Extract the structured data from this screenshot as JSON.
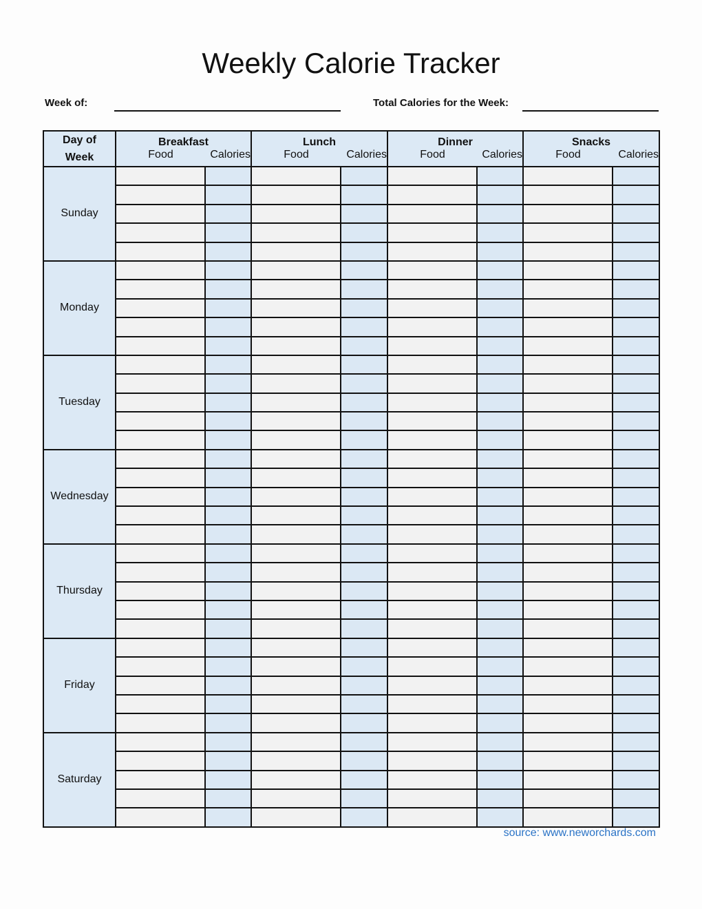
{
  "title": "Weekly Calorie Tracker",
  "week_of_label": "Week of:",
  "total_label": "Total Calories for the Week:",
  "table": {
    "day_header": [
      "Day of",
      "Week"
    ],
    "meals": [
      "Breakfast",
      "Lunch",
      "Dinner",
      "Snacks"
    ],
    "sub_food": "Food",
    "sub_calories": "Calories",
    "days": [
      "Sunday",
      "Monday",
      "Tuesday",
      "Wednesday",
      "Thursday",
      "Friday",
      "Saturday"
    ],
    "rows_per_day": 5
  },
  "source": "source: www.neworchards.com",
  "colors": {
    "header_bg": "#dce9f5",
    "food_bg": "#f2f2f2",
    "calories_bg": "#dbe8f4",
    "source": "#2a73c6"
  }
}
